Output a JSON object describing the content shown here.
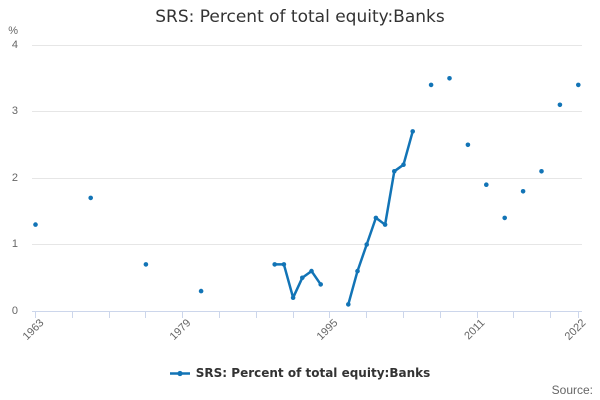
{
  "title": "SRS: Percent of total equity:Banks",
  "source_label": "Source:",
  "legend": {
    "label": "SRS: Percent of total equity:Banks"
  },
  "y_axis": {
    "unit": "%",
    "tick_labels": [
      "4",
      "3",
      "2",
      "1",
      "0"
    ],
    "tick_values": [
      4,
      3,
      2,
      1,
      0
    ]
  },
  "x_axis": {
    "tick_years": [
      1963,
      1967,
      1971,
      1975,
      1979,
      1983,
      1987,
      1991,
      1995,
      1999,
      2003,
      2007,
      2011,
      2015,
      2019,
      2022
    ],
    "label_years": [
      1963,
      1979,
      1995,
      2011,
      2022
    ],
    "labels": [
      "1963",
      "1979",
      "1995",
      "2011",
      "2022"
    ]
  },
  "colors": {
    "series": "#1274b6",
    "grid": "#e6e6e6",
    "axis": "#ccd6eb",
    "label": "#666666",
    "title": "#333333",
    "legend_text": "#333333",
    "source": "#666666"
  },
  "chart_data": {
    "type": "line",
    "title": "SRS: Percent of total equity:Banks",
    "xlabel": "",
    "ylabel": "%",
    "ylim": [
      0,
      4
    ],
    "xlim": [
      1963,
      2022
    ],
    "grid": "horizontal",
    "legend_position": "bottom",
    "marker": "circle",
    "connect_only_consecutive_years": true,
    "series": [
      {
        "name": "SRS: Percent of total equity:Banks",
        "points": [
          [
            1963,
            1.3
          ],
          [
            1969,
            1.7
          ],
          [
            1975,
            0.7
          ],
          [
            1981,
            0.3
          ],
          [
            1989,
            0.7
          ],
          [
            1990,
            0.7
          ],
          [
            1991,
            0.2
          ],
          [
            1992,
            0.5
          ],
          [
            1993,
            0.6
          ],
          [
            1994,
            0.4
          ],
          [
            1997,
            0.1
          ],
          [
            1998,
            0.6
          ],
          [
            1999,
            1.0
          ],
          [
            2000,
            1.4
          ],
          [
            2001,
            1.3
          ],
          [
            2002,
            2.1
          ],
          [
            2003,
            2.2
          ],
          [
            2004,
            2.7
          ],
          [
            2006,
            3.4
          ],
          [
            2008,
            3.5
          ],
          [
            2010,
            2.5
          ],
          [
            2012,
            1.9
          ],
          [
            2014,
            1.4
          ],
          [
            2016,
            1.8
          ],
          [
            2018,
            2.1
          ],
          [
            2020,
            3.1
          ],
          [
            2022,
            3.4
          ]
        ]
      }
    ]
  }
}
